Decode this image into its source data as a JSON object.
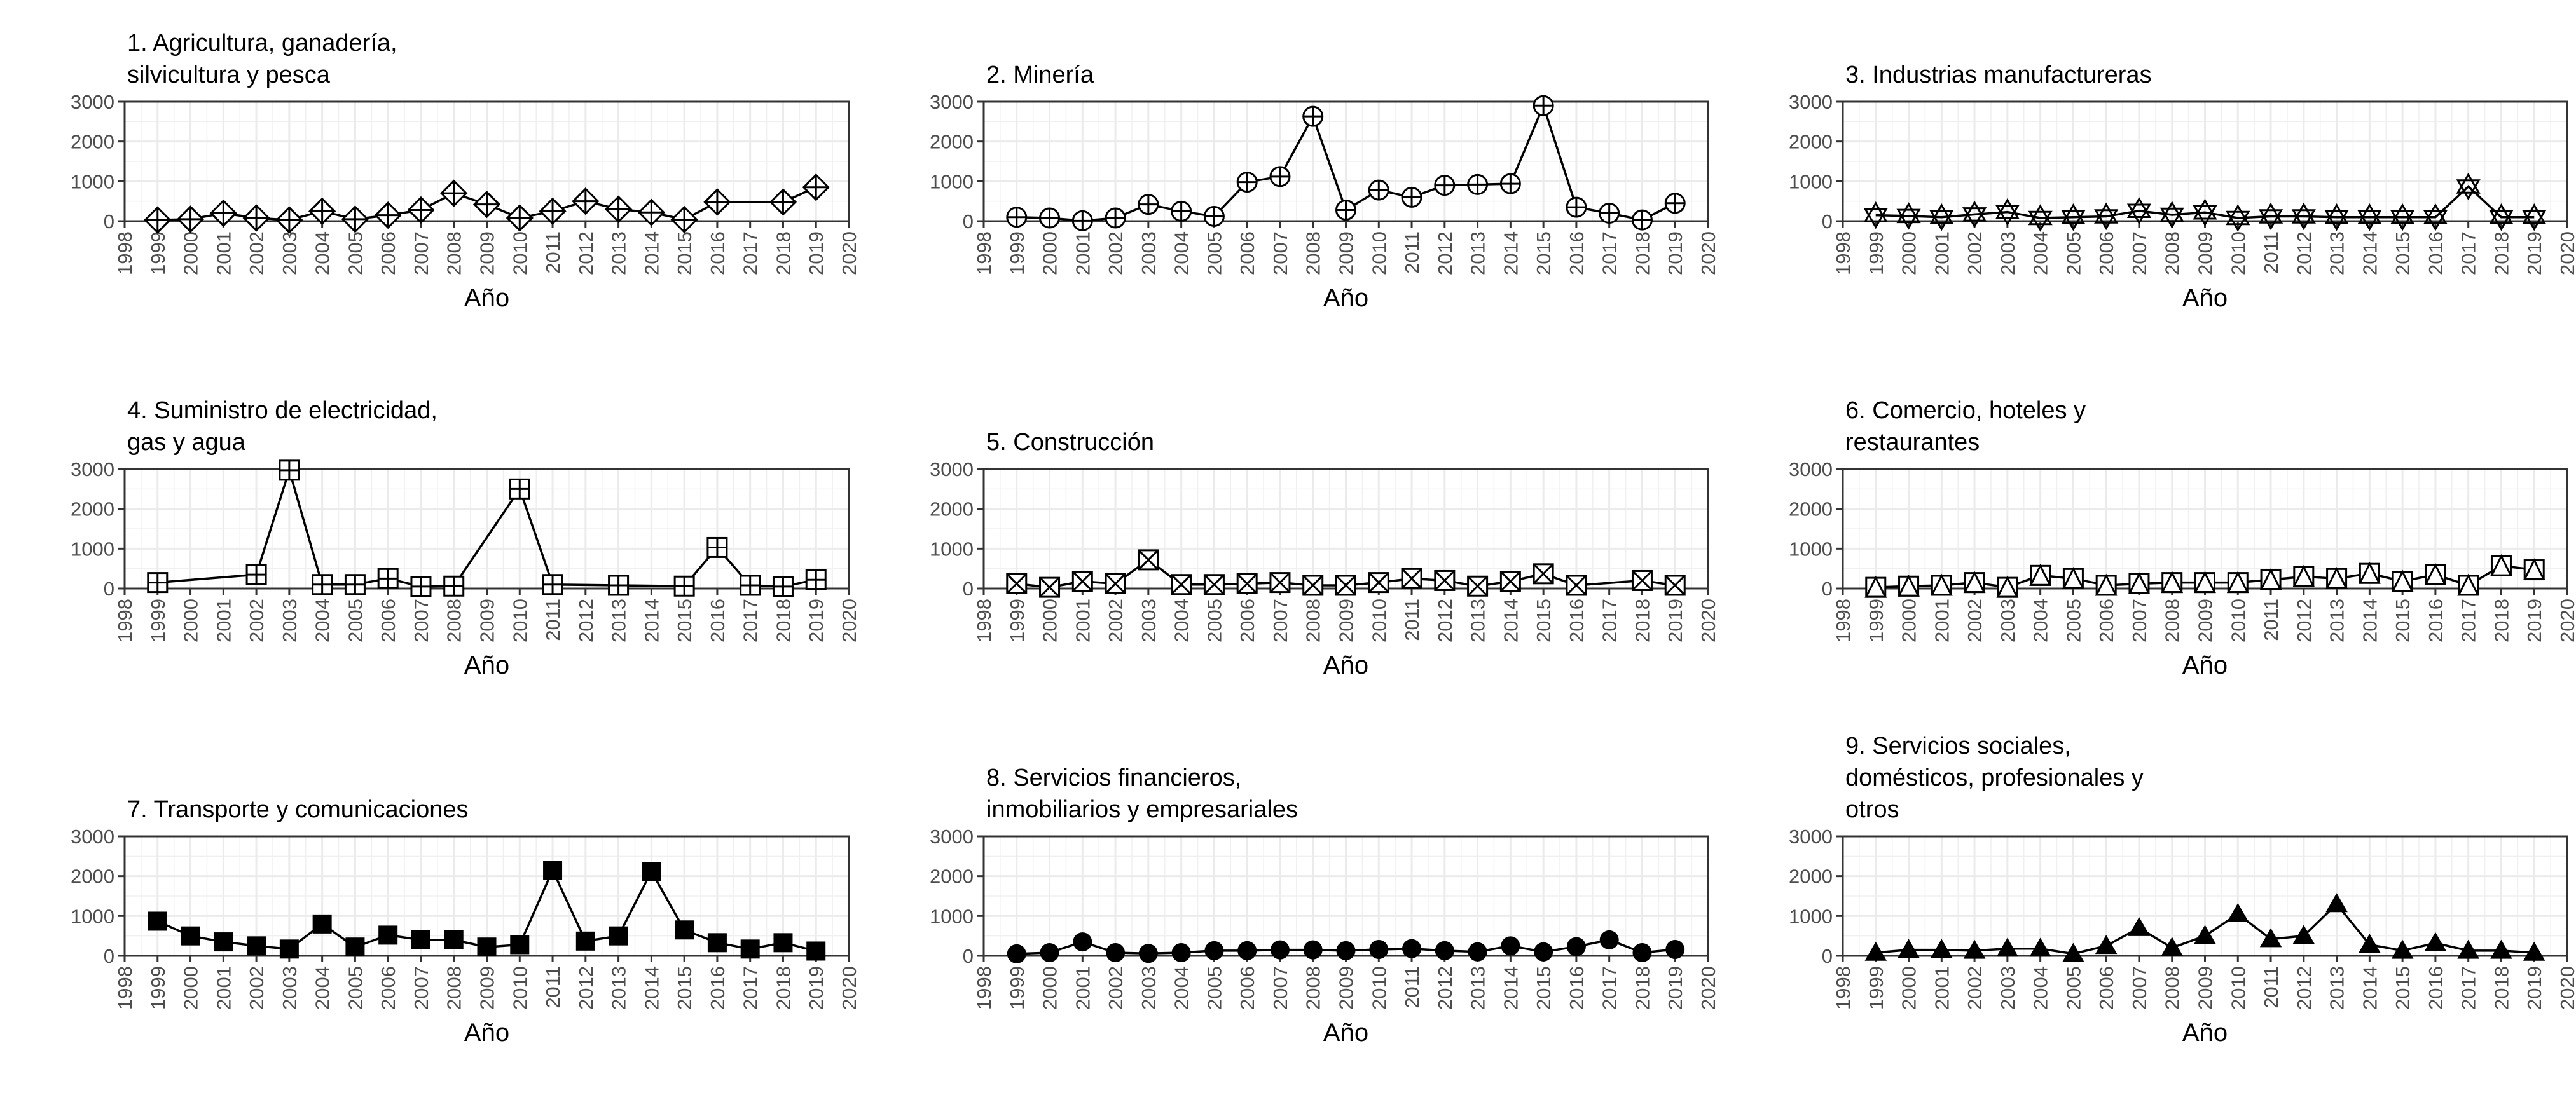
{
  "chart_data": [
    {
      "type": "line",
      "title": [
        "1. Agricultura, ganadería,",
        "silvicultura y pesca"
      ],
      "xlabel": "Año",
      "ylabel": "",
      "marker": "diamond-plus",
      "xlim": [
        1998,
        2020
      ],
      "ylim": [
        0,
        3000
      ],
      "xticks": [
        "1998",
        "1999",
        "2000",
        "2001",
        "2002",
        "2003",
        "2004",
        "2005",
        "2006",
        "2007",
        "2008",
        "2009",
        "2010",
        "2011",
        "2012",
        "2013",
        "2014",
        "2015",
        "2016",
        "2017",
        "2018",
        "2019",
        "2020"
      ],
      "yticks": [
        "0",
        "1000",
        "2000",
        "3000"
      ],
      "grid": true,
      "x": [
        1999,
        2000,
        2001,
        2002,
        2003,
        2004,
        2005,
        2006,
        2007,
        2008,
        2009,
        2010,
        2011,
        2012,
        2013,
        2014,
        2015,
        2016,
        2018,
        2019
      ],
      "y": [
        30,
        50,
        200,
        80,
        30,
        250,
        50,
        150,
        280,
        700,
        420,
        80,
        250,
        500,
        300,
        220,
        40,
        480,
        480,
        850
      ]
    },
    {
      "type": "line",
      "title": [
        "2. Minería"
      ],
      "xlabel": "Año",
      "ylabel": "",
      "marker": "circle-plus",
      "xlim": [
        1998,
        2020
      ],
      "ylim": [
        0,
        3000
      ],
      "xticks": [
        "1998",
        "1999",
        "2000",
        "2001",
        "2002",
        "2003",
        "2004",
        "2005",
        "2006",
        "2007",
        "2008",
        "2009",
        "2010",
        "2011",
        "2012",
        "2013",
        "2014",
        "2015",
        "2016",
        "2017",
        "2018",
        "2019",
        "2020"
      ],
      "yticks": [
        "0",
        "1000",
        "2000",
        "3000"
      ],
      "grid": true,
      "x": [
        1999,
        2000,
        2001,
        2002,
        2003,
        2004,
        2005,
        2006,
        2007,
        2008,
        2009,
        2010,
        2011,
        2012,
        2013,
        2014,
        2015,
        2016,
        2017,
        2018,
        2019
      ],
      "y": [
        100,
        80,
        10,
        80,
        420,
        250,
        120,
        980,
        1120,
        2630,
        280,
        780,
        600,
        900,
        920,
        940,
        2900,
        350,
        200,
        30,
        450
      ]
    },
    {
      "type": "line",
      "title": [
        "3. Industrias manufactureras"
      ],
      "xlabel": "Año",
      "ylabel": "",
      "marker": "star-of-david",
      "xlim": [
        1998,
        2020
      ],
      "ylim": [
        0,
        3000
      ],
      "xticks": [
        "1998",
        "1999",
        "2000",
        "2001",
        "2002",
        "2003",
        "2004",
        "2005",
        "2006",
        "2007",
        "2008",
        "2009",
        "2010",
        "2011",
        "2012",
        "2013",
        "2014",
        "2015",
        "2016",
        "2017",
        "2018",
        "2019",
        "2020"
      ],
      "yticks": [
        "0",
        "1000",
        "2000",
        "3000"
      ],
      "grid": true,
      "x": [
        1999,
        2000,
        2001,
        2002,
        2003,
        2004,
        2005,
        2006,
        2007,
        2008,
        2009,
        2010,
        2011,
        2012,
        2013,
        2014,
        2015,
        2016,
        2017,
        2018,
        2019
      ],
      "y": [
        150,
        130,
        100,
        170,
        230,
        80,
        100,
        120,
        260,
        160,
        220,
        80,
        120,
        120,
        100,
        100,
        100,
        100,
        870,
        100,
        100
      ]
    },
    {
      "type": "line",
      "title": [
        "4. Suministro de electricidad,",
        "gas y agua"
      ],
      "xlabel": "Año",
      "ylabel": "",
      "marker": "square-plus",
      "xlim": [
        1998,
        2020
      ],
      "ylim": [
        0,
        3000
      ],
      "xticks": [
        "1998",
        "1999",
        "2000",
        "2001",
        "2002",
        "2003",
        "2004",
        "2005",
        "2006",
        "2007",
        "2008",
        "2009",
        "2010",
        "2011",
        "2012",
        "2013",
        "2014",
        "2015",
        "2016",
        "2017",
        "2018",
        "2019",
        "2020"
      ],
      "yticks": [
        "0",
        "1000",
        "2000",
        "3000"
      ],
      "grid": true,
      "x": [
        1999,
        2002,
        2003,
        2004,
        2005,
        2006,
        2007,
        2008,
        2010,
        2011,
        2013,
        2015,
        2016,
        2017,
        2018,
        2019
      ],
      "y": [
        150,
        350,
        2970,
        100,
        100,
        250,
        50,
        60,
        2500,
        100,
        80,
        60,
        1030,
        80,
        50,
        220
      ]
    },
    {
      "type": "line",
      "title": [
        "5. Construcción"
      ],
      "xlabel": "Año",
      "ylabel": "",
      "marker": "square-cross",
      "xlim": [
        1998,
        2020
      ],
      "ylim": [
        0,
        3000
      ],
      "xticks": [
        "1998",
        "1999",
        "2000",
        "2001",
        "2002",
        "2003",
        "2004",
        "2005",
        "2006",
        "2007",
        "2008",
        "2009",
        "2010",
        "2011",
        "2012",
        "2013",
        "2014",
        "2015",
        "2016",
        "2017",
        "2018",
        "2019",
        "2020"
      ],
      "yticks": [
        "0",
        "1000",
        "2000",
        "3000"
      ],
      "grid": true,
      "x": [
        1999,
        2000,
        2001,
        2002,
        2003,
        2004,
        2005,
        2006,
        2007,
        2008,
        2009,
        2010,
        2011,
        2012,
        2013,
        2014,
        2015,
        2016,
        2018,
        2019
      ],
      "y": [
        120,
        30,
        180,
        120,
        720,
        100,
        100,
        120,
        150,
        80,
        80,
        150,
        250,
        200,
        60,
        180,
        370,
        80,
        200,
        80
      ]
    },
    {
      "type": "line",
      "title": [
        "6. Comercio, hoteles y",
        "restaurantes"
      ],
      "xlabel": "Año",
      "ylabel": "",
      "marker": "triangle-square",
      "xlim": [
        1998,
        2020
      ],
      "ylim": [
        0,
        3000
      ],
      "xticks": [
        "1998",
        "1999",
        "2000",
        "2001",
        "2002",
        "2003",
        "2004",
        "2005",
        "2006",
        "2007",
        "2008",
        "2009",
        "2010",
        "2011",
        "2012",
        "2013",
        "2014",
        "2015",
        "2016",
        "2017",
        "2018",
        "2019",
        "2020"
      ],
      "yticks": [
        "0",
        "1000",
        "2000",
        "3000"
      ],
      "grid": true,
      "x": [
        1999,
        2000,
        2001,
        2002,
        2003,
        2004,
        2005,
        2006,
        2007,
        2008,
        2009,
        2010,
        2011,
        2012,
        2013,
        2014,
        2015,
        2016,
        2017,
        2018,
        2019
      ],
      "y": [
        30,
        60,
        80,
        150,
        30,
        330,
        250,
        80,
        120,
        150,
        150,
        150,
        220,
        300,
        250,
        380,
        180,
        350,
        80,
        570,
        470
      ]
    },
    {
      "type": "line",
      "title": [
        "7. Transporte y comunicaciones"
      ],
      "xlabel": "Año",
      "ylabel": "",
      "marker": "filled-square",
      "xlim": [
        1998,
        2020
      ],
      "ylim": [
        0,
        3000
      ],
      "xticks": [
        "1998",
        "1999",
        "2000",
        "2001",
        "2002",
        "2003",
        "2004",
        "2005",
        "2006",
        "2007",
        "2008",
        "2009",
        "2010",
        "2011",
        "2012",
        "2013",
        "2014",
        "2015",
        "2016",
        "2017",
        "2018",
        "2019",
        "2020"
      ],
      "yticks": [
        "0",
        "1000",
        "2000",
        "3000"
      ],
      "grid": true,
      "x": [
        1999,
        2000,
        2001,
        2002,
        2003,
        2004,
        2005,
        2006,
        2007,
        2008,
        2009,
        2010,
        2011,
        2012,
        2013,
        2014,
        2015,
        2016,
        2017,
        2018,
        2019
      ],
      "y": [
        870,
        500,
        350,
        250,
        170,
        800,
        220,
        520,
        400,
        400,
        220,
        280,
        2150,
        370,
        500,
        2120,
        650,
        330,
        170,
        330,
        120
      ]
    },
    {
      "type": "line",
      "title": [
        "8. Servicios financieros,",
        "inmobiliarios y empresariales"
      ],
      "xlabel": "Año",
      "ylabel": "",
      "marker": "filled-circle",
      "xlim": [
        1998,
        2020
      ],
      "ylim": [
        0,
        3000
      ],
      "xticks": [
        "1998",
        "1999",
        "2000",
        "2001",
        "2002",
        "2003",
        "2004",
        "2005",
        "2006",
        "2007",
        "2008",
        "2009",
        "2010",
        "2011",
        "2012",
        "2013",
        "2014",
        "2015",
        "2016",
        "2017",
        "2018",
        "2019",
        "2020"
      ],
      "yticks": [
        "0",
        "1000",
        "2000",
        "3000"
      ],
      "grid": true,
      "x": [
        1999,
        2000,
        2001,
        2002,
        2003,
        2004,
        2005,
        2006,
        2007,
        2008,
        2009,
        2010,
        2011,
        2012,
        2013,
        2014,
        2015,
        2016,
        2017,
        2018,
        2019
      ],
      "y": [
        50,
        80,
        350,
        80,
        60,
        80,
        130,
        130,
        150,
        150,
        130,
        160,
        180,
        130,
        100,
        250,
        100,
        230,
        400,
        80,
        160
      ]
    },
    {
      "type": "line",
      "title": [
        "9. Servicios sociales,",
        "domésticos, profesionales y",
        "otros"
      ],
      "xlabel": "Año",
      "ylabel": "",
      "marker": "filled-triangle",
      "xlim": [
        1998,
        2020
      ],
      "ylim": [
        0,
        3000
      ],
      "xticks": [
        "1998",
        "1999",
        "2000",
        "2001",
        "2002",
        "2003",
        "2004",
        "2005",
        "2006",
        "2007",
        "2008",
        "2009",
        "2010",
        "2011",
        "2012",
        "2013",
        "2014",
        "2015",
        "2016",
        "2017",
        "2018",
        "2019",
        "2020"
      ],
      "yticks": [
        "0",
        "1000",
        "2000",
        "3000"
      ],
      "grid": true,
      "x": [
        1999,
        2000,
        2001,
        2002,
        2003,
        2004,
        2005,
        2006,
        2007,
        2008,
        2009,
        2010,
        2011,
        2012,
        2013,
        2014,
        2015,
        2016,
        2017,
        2018,
        2019
      ],
      "y": [
        80,
        150,
        150,
        130,
        180,
        180,
        50,
        250,
        700,
        200,
        500,
        1050,
        420,
        500,
        1300,
        280,
        130,
        320,
        130,
        130,
        80
      ]
    }
  ]
}
